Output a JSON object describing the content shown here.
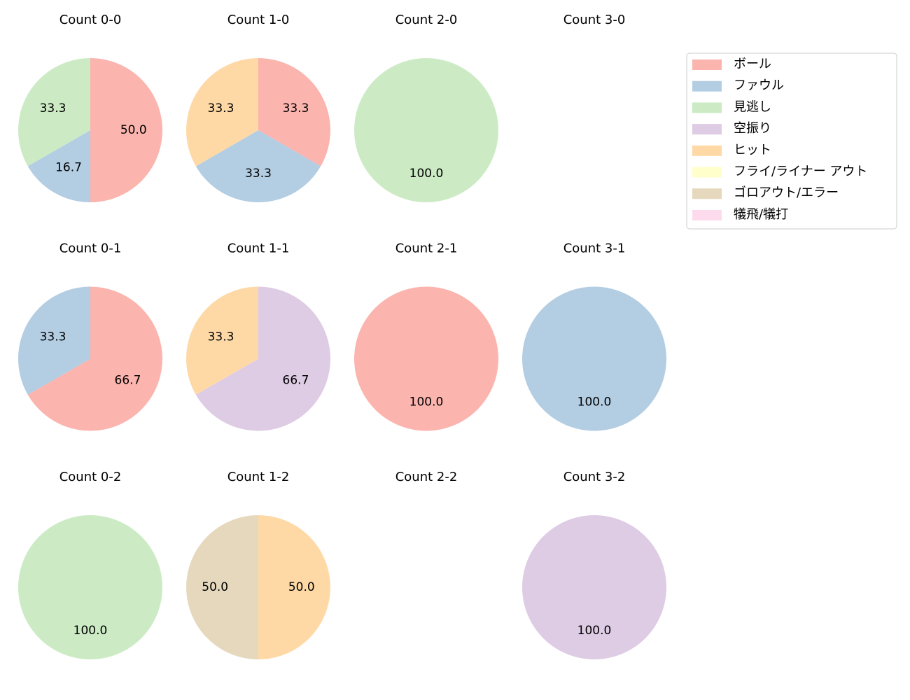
{
  "legend": {
    "labels": [
      "ボール",
      "ファウル",
      "見逃し",
      "空振り",
      "ヒット",
      "フライ/ライナー アウト",
      "ゴロアウト/エラー",
      "犠飛/犠打"
    ],
    "colors": [
      "#fbb4ae",
      "#b3cde3",
      "#ccebc5",
      "#decbe4",
      "#fed9a6",
      "#ffffcc",
      "#e5d8bd",
      "#fddaec"
    ]
  },
  "chart_data": [
    {
      "type": "pie",
      "title": "Count 0-0",
      "values": [
        50,
        16.7,
        33.3,
        0,
        0,
        0,
        0,
        0
      ],
      "value_labels": [
        "50.0",
        "16.7",
        "33.3",
        null,
        null,
        null,
        null,
        null
      ]
    },
    {
      "type": "pie",
      "title": "Count 1-0",
      "values": [
        33.3,
        33.3,
        0,
        0,
        33.3,
        0,
        0,
        0
      ],
      "value_labels": [
        "33.3",
        "33.3",
        null,
        null,
        "33.3",
        null,
        null,
        null
      ]
    },
    {
      "type": "pie",
      "title": "Count 2-0",
      "values": [
        0,
        0,
        100,
        0,
        0,
        0,
        0,
        0
      ],
      "value_labels": [
        null,
        null,
        "100.0",
        null,
        null,
        null,
        null,
        null
      ]
    },
    {
      "type": "pie",
      "title": "Count 3-0"
    },
    {
      "type": "pie",
      "title": "Count 0-1",
      "values": [
        66.7,
        33.3,
        0,
        0,
        0,
        0,
        0,
        0
      ],
      "value_labels": [
        "66.7",
        "33.3",
        null,
        null,
        null,
        null,
        null,
        null
      ]
    },
    {
      "type": "pie",
      "title": "Count 1-1",
      "values": [
        0,
        0,
        0,
        66.7,
        33.3,
        0,
        0,
        0
      ],
      "value_labels": [
        null,
        null,
        null,
        "66.7",
        "33.3",
        null,
        null,
        null
      ]
    },
    {
      "type": "pie",
      "title": "Count 2-1",
      "values": [
        100,
        0,
        0,
        0,
        0,
        0,
        0,
        0
      ],
      "value_labels": [
        "100.0",
        null,
        null,
        null,
        null,
        null,
        null,
        null
      ]
    },
    {
      "type": "pie",
      "title": "Count 3-1",
      "values": [
        0,
        100,
        0,
        0,
        0,
        0,
        0,
        0
      ],
      "value_labels": [
        null,
        "100.0",
        null,
        null,
        null,
        null,
        null,
        null
      ]
    },
    {
      "type": "pie",
      "title": "Count 0-2",
      "values": [
        0,
        0,
        100,
        0,
        0,
        0,
        0,
        0
      ],
      "value_labels": [
        null,
        null,
        "100.0",
        null,
        null,
        null,
        null,
        null
      ]
    },
    {
      "type": "pie",
      "title": "Count 1-2",
      "values": [
        0,
        0,
        0,
        0,
        50,
        0,
        50,
        0
      ],
      "value_labels": [
        null,
        null,
        null,
        null,
        "50.0",
        null,
        "50.0",
        null
      ]
    },
    {
      "type": "pie",
      "title": "Count 2-2"
    },
    {
      "type": "pie",
      "title": "Count 3-2",
      "values": [
        0,
        0,
        0,
        100,
        0,
        0,
        0,
        0
      ],
      "value_labels": [
        null,
        null,
        null,
        "100.0",
        null,
        null,
        null,
        null
      ]
    }
  ]
}
